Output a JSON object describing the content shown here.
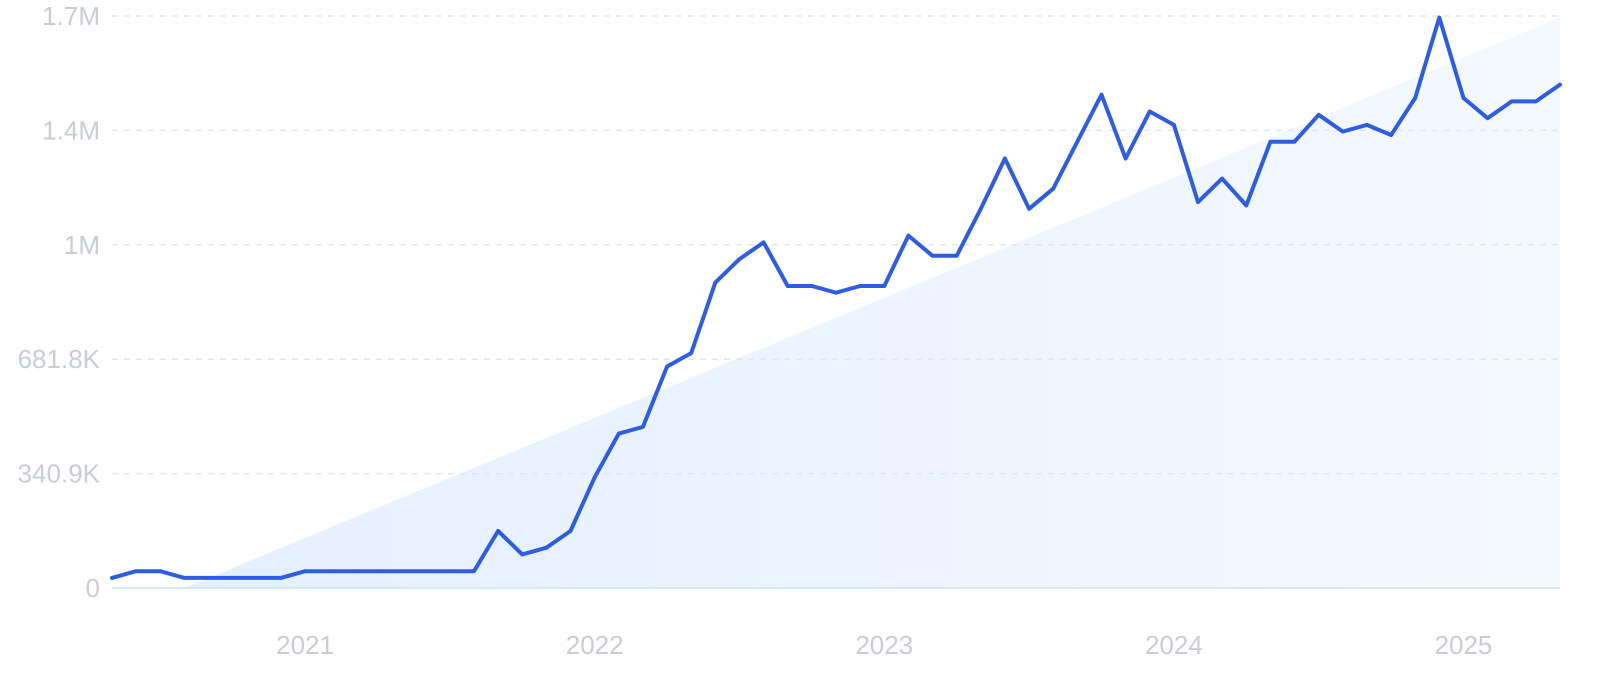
{
  "chart_data": {
    "type": "line",
    "title": "",
    "xlabel": "",
    "ylabel": "",
    "grid": true,
    "colors": {
      "line": "#2f5de0",
      "trend_fill": "#e4efff",
      "grid": "#dfe7ee",
      "tick": "#c9ccd6"
    },
    "ylim": [
      0,
      1704500
    ],
    "y_ticks": [
      {
        "value": 0,
        "label": "0"
      },
      {
        "value": 340900,
        "label": "340.9K"
      },
      {
        "value": 681800,
        "label": "681.8K"
      },
      {
        "value": 1022700,
        "label": "1M"
      },
      {
        "value": 1363600,
        "label": "1.4M"
      },
      {
        "value": 1704500,
        "label": "1.7M"
      }
    ],
    "xlim": [
      "2020-05",
      "2025-05"
    ],
    "x_ticks": [
      {
        "value": "2021-01",
        "label": "2021"
      },
      {
        "value": "2022-01",
        "label": "2022"
      },
      {
        "value": "2023-01",
        "label": "2023"
      },
      {
        "value": "2024-01",
        "label": "2024"
      },
      {
        "value": "2025-01",
        "label": "2025"
      }
    ],
    "trend": {
      "start": {
        "x": "2020-08",
        "y": 0
      },
      "end": {
        "x": "2025-05",
        "y": 1700000
      }
    },
    "series": [
      {
        "x": [
          "2020-05",
          "2020-06",
          "2020-07",
          "2020-08",
          "2020-09",
          "2020-10",
          "2020-11",
          "2020-12",
          "2021-01",
          "2021-02",
          "2021-03",
          "2021-04",
          "2021-05",
          "2021-06",
          "2021-07",
          "2021-08",
          "2021-09",
          "2021-10",
          "2021-11",
          "2021-12",
          "2022-01",
          "2022-02",
          "2022-03",
          "2022-04",
          "2022-05",
          "2022-06",
          "2022-07",
          "2022-08",
          "2022-09",
          "2022-10",
          "2022-11",
          "2022-12",
          "2023-01",
          "2023-02",
          "2023-03",
          "2023-04",
          "2023-05",
          "2023-06",
          "2023-07",
          "2023-08",
          "2023-09",
          "2023-10",
          "2023-11",
          "2023-12",
          "2024-01",
          "2024-02",
          "2024-03",
          "2024-04",
          "2024-05",
          "2024-06",
          "2024-07",
          "2024-08",
          "2024-09",
          "2024-10",
          "2024-11",
          "2024-12",
          "2025-01",
          "2025-02",
          "2025-03",
          "2025-04",
          "2025-05"
        ],
        "y": [
          30000,
          50000,
          50000,
          30000,
          30000,
          30000,
          30000,
          30000,
          50000,
          50000,
          50000,
          50000,
          50000,
          50000,
          50000,
          50000,
          170000,
          100000,
          120000,
          170000,
          330000,
          460000,
          480000,
          660000,
          700000,
          910000,
          980000,
          1030000,
          900000,
          900000,
          880000,
          900000,
          900000,
          1050000,
          990000,
          990000,
          1130000,
          1280000,
          1130000,
          1190000,
          1330000,
          1470000,
          1280000,
          1420000,
          1380000,
          1150000,
          1220000,
          1140000,
          1330000,
          1330000,
          1410000,
          1360000,
          1380000,
          1350000,
          1460000,
          1700000,
          1460000,
          1400000,
          1450000,
          1450000,
          1500000
        ]
      }
    ]
  }
}
